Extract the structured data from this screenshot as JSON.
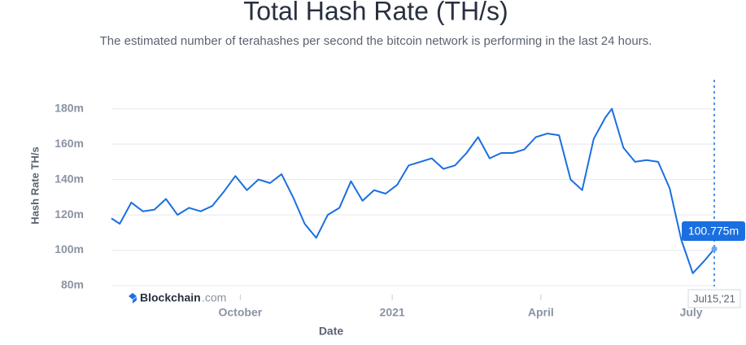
{
  "chart_data": {
    "type": "line",
    "title": "Total Hash Rate (TH/s)",
    "subtitle": "The estimated number of terahashes per second the bitcoin network is performing in the last 24 hours.",
    "x_label": "Date",
    "y_label": "Hash Rate TH/s",
    "brand": {
      "name": "Blockchain",
      "suffix": ".com"
    },
    "color": "#1a6fe0",
    "grid": true,
    "x": [
      "2020-07-15",
      "2020-07-20",
      "2020-07-27",
      "2020-08-03",
      "2020-08-10",
      "2020-08-17",
      "2020-08-24",
      "2020-08-31",
      "2020-09-07",
      "2020-09-14",
      "2020-09-21",
      "2020-09-28",
      "2020-10-05",
      "2020-10-12",
      "2020-10-19",
      "2020-10-26",
      "2020-11-02",
      "2020-11-09",
      "2020-11-16",
      "2020-11-23",
      "2020-11-30",
      "2020-12-07",
      "2020-12-14",
      "2020-12-21",
      "2020-12-28",
      "2021-01-04",
      "2021-01-11",
      "2021-01-18",
      "2021-01-25",
      "2021-02-01",
      "2021-02-08",
      "2021-02-15",
      "2021-02-22",
      "2021-03-01",
      "2021-03-08",
      "2021-03-15",
      "2021-03-22",
      "2021-03-29",
      "2021-04-05",
      "2021-04-12",
      "2021-04-19",
      "2021-04-26",
      "2021-05-03",
      "2021-05-10",
      "2021-05-14",
      "2021-05-21",
      "2021-05-28",
      "2021-06-04",
      "2021-06-11",
      "2021-06-18",
      "2021-06-25",
      "2021-07-02",
      "2021-07-09",
      "2021-07-15"
    ],
    "values": [
      118,
      115,
      127,
      122,
      123,
      129,
      120,
      124,
      122,
      125,
      133,
      142,
      134,
      140,
      138,
      143,
      130,
      115,
      107,
      120,
      124,
      139,
      128,
      134,
      132,
      137,
      148,
      150,
      152,
      146,
      148,
      155,
      164,
      152,
      155,
      155,
      157,
      164,
      166,
      165,
      140,
      134,
      163,
      175,
      180,
      158,
      150,
      151,
      150,
      135,
      106,
      87,
      94,
      100.775
    ],
    "xlim": [
      "2020-07-15",
      "2021-07-15"
    ],
    "xticks": [
      {
        "value": "2020-10-01",
        "label": "October"
      },
      {
        "value": "2021-01-01",
        "label": "2021"
      },
      {
        "value": "2021-04-01",
        "label": "April"
      },
      {
        "value": "2021-07-01",
        "label": "July"
      }
    ],
    "ylim": [
      80,
      190
    ],
    "yticks": [
      {
        "value": 80,
        "label": "80m"
      },
      {
        "value": 100,
        "label": "100m"
      },
      {
        "value": 120,
        "label": "120m"
      },
      {
        "value": 140,
        "label": "140m"
      },
      {
        "value": 160,
        "label": "160m"
      },
      {
        "value": 180,
        "label": "180m"
      }
    ],
    "tooltip": {
      "x_label": "Jul15,'21",
      "value_label": "100.775m"
    }
  }
}
